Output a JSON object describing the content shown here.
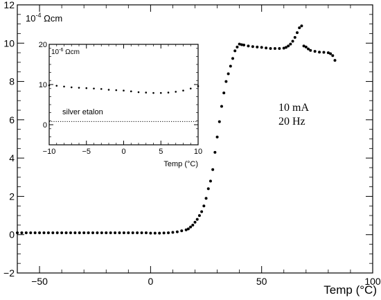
{
  "chart_data": [
    {
      "type": "scatter",
      "xlabel": "Temp (°C)",
      "unit_label": "10",
      "unit_exp": "-4",
      "unit_suffix": " Ωcm",
      "xlim": [
        -60,
        100
      ],
      "ylim": [
        -2,
        12
      ],
      "xticks": [
        -50,
        0,
        50,
        100
      ],
      "yticks": [
        -2,
        0,
        2,
        4,
        6,
        8,
        10,
        12
      ],
      "annotations": [
        "10 mA",
        "20 Hz"
      ],
      "series": [
        {
          "x": [
            -60,
            -58,
            -56,
            -54,
            -52,
            -50,
            -48,
            -46,
            -44,
            -42,
            -40,
            -38,
            -36,
            -34,
            -32,
            -30,
            -28,
            -26,
            -24,
            -22,
            -20,
            -18,
            -16,
            -14,
            -12,
            -10,
            -8,
            -6,
            -4,
            -2,
            0,
            2,
            4,
            6,
            8,
            10,
            12,
            14,
            16,
            17,
            18,
            19,
            20,
            21,
            22,
            23,
            24,
            25,
            26,
            27,
            28,
            29,
            30,
            31,
            32,
            33,
            34,
            35,
            36,
            37,
            38,
            39,
            40,
            41,
            42,
            44,
            46,
            48,
            50,
            52,
            54,
            56,
            58,
            60,
            61,
            62,
            63,
            64,
            65,
            66,
            67,
            68,
            69,
            70,
            71,
            72,
            74,
            76,
            78,
            80,
            81,
            82,
            83
          ],
          "y": [
            0.1,
            0.1,
            0.1,
            0.1,
            0.1,
            0.1,
            0.1,
            0.1,
            0.1,
            0.1,
            0.1,
            0.1,
            0.1,
            0.1,
            0.1,
            0.1,
            0.1,
            0.1,
            0.1,
            0.1,
            0.1,
            0.1,
            0.1,
            0.1,
            0.1,
            0.1,
            0.1,
            0.1,
            0.1,
            0.1,
            0.08,
            0.08,
            0.08,
            0.09,
            0.1,
            0.12,
            0.15,
            0.2,
            0.25,
            0.3,
            0.4,
            0.5,
            0.65,
            0.8,
            1.0,
            1.2,
            1.5,
            1.9,
            2.4,
            2.8,
            3.4,
            4.3,
            5.1,
            5.9,
            6.7,
            7.4,
            8.0,
            8.4,
            8.8,
            9.2,
            9.6,
            9.8,
            9.95,
            9.92,
            9.9,
            9.85,
            9.82,
            9.8,
            9.78,
            9.75,
            9.72,
            9.72,
            9.72,
            9.74,
            9.78,
            9.85,
            9.95,
            10.1,
            10.3,
            10.55,
            10.8,
            10.9,
            9.85,
            9.8,
            9.7,
            9.62,
            9.57,
            9.53,
            9.52,
            9.5,
            9.45,
            9.35,
            9.1
          ]
        }
      ]
    },
    {
      "type": "scatter",
      "xlabel": "Temp (°C)",
      "unit_label": "10",
      "unit_exp": "-6",
      "unit_suffix": " Ωcm",
      "xlim": [
        -10,
        10
      ],
      "ylim": [
        -5,
        20
      ],
      "xticks": [
        -10,
        -5,
        0,
        5,
        10
      ],
      "yticks": [
        0,
        10,
        20
      ],
      "annotations": [
        "silver etalon"
      ],
      "series": [
        {
          "x": [
            -10,
            -9,
            -8,
            -7,
            -6,
            -5,
            -4,
            -3,
            -2,
            -1,
            0,
            1,
            2,
            3,
            4,
            5,
            6,
            7,
            8,
            9,
            10
          ],
          "y": [
            9.8,
            9.7,
            9.5,
            9.3,
            9.2,
            9.1,
            9.0,
            8.9,
            8.7,
            8.6,
            8.5,
            8.3,
            8.1,
            8.0,
            7.9,
            7.9,
            8.0,
            8.2,
            8.5,
            9.0,
            9.6
          ]
        },
        {
          "type": "dotted-line",
          "x": [
            -10,
            10
          ],
          "y": [
            0.8,
            0.8
          ]
        }
      ]
    }
  ]
}
